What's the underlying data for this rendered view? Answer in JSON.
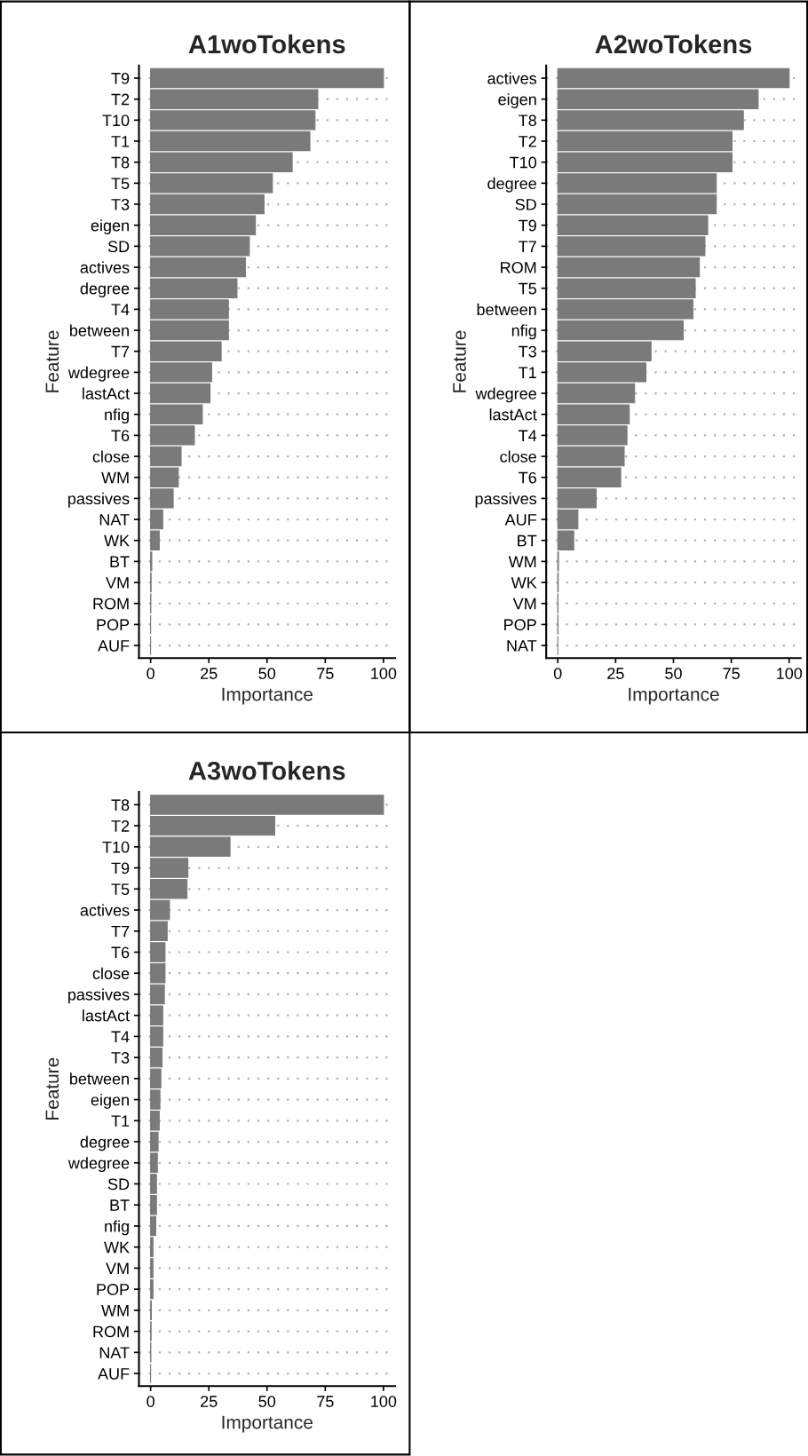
{
  "chart_data": [
    {
      "type": "bar",
      "orientation": "horizontal",
      "title": "A1woTokens",
      "xlabel": "Importance",
      "ylabel": "Feature",
      "categories": [
        "T9",
        "T2",
        "T10",
        "T1",
        "T8",
        "T5",
        "T3",
        "eigen",
        "SD",
        "actives",
        "degree",
        "T4",
        "between",
        "T7",
        "wdegree",
        "lastAct",
        "nfig",
        "T6",
        "close",
        "WM",
        "passives",
        "NAT",
        "WK",
        "BT",
        "VM",
        "ROM",
        "POP",
        "AUF"
      ],
      "values": [
        100,
        71.8,
        70.6,
        68.4,
        60.8,
        52.3,
        48.7,
        45.0,
        42.4,
        40.7,
        37.1,
        33.4,
        33.4,
        30.3,
        26.2,
        25.5,
        22.2,
        18.8,
        13.1,
        11.9,
        9.7,
        5.2,
        3.7,
        0.5,
        0.2,
        0.1,
        0,
        0
      ],
      "color": "#7a7a7a",
      "xlim": [
        -5,
        105
      ],
      "xticks": [
        0,
        25,
        50,
        75,
        100
      ],
      "grid": "y",
      "legend": false
    },
    {
      "type": "bar",
      "orientation": "horizontal",
      "title": "A2woTokens",
      "xlabel": "Importance",
      "ylabel": "Feature",
      "categories": [
        "actives",
        "eigen",
        "T8",
        "T2",
        "T10",
        "degree",
        "SD",
        "T9",
        "T7",
        "ROM",
        "T5",
        "between",
        "nfig",
        "T3",
        "T1",
        "wdegree",
        "lastAct",
        "T4",
        "close",
        "T6",
        "passives",
        "AUF",
        "BT",
        "WM",
        "WK",
        "VM",
        "POP",
        "NAT"
      ],
      "values": [
        100,
        86.6,
        80.2,
        75.3,
        75.3,
        68.5,
        68.5,
        64.8,
        63.6,
        61.2,
        59.4,
        58.4,
        54.2,
        40.3,
        38.1,
        33.2,
        30.9,
        29.9,
        28.7,
        27.2,
        16.6,
        8.7,
        6.9,
        0.3,
        0.2,
        0.1,
        0.1,
        0
      ],
      "color": "#7a7a7a",
      "xlim": [
        -5,
        105
      ],
      "xticks": [
        0,
        25,
        50,
        75,
        100
      ],
      "grid": "y",
      "legend": false
    },
    {
      "type": "bar",
      "orientation": "horizontal",
      "title": "A3woTokens",
      "xlabel": "Importance",
      "ylabel": "Feature",
      "categories": [
        "T8",
        "T2",
        "T10",
        "T9",
        "T5",
        "actives",
        "T7",
        "T6",
        "close",
        "passives",
        "lastAct",
        "T4",
        "T3",
        "between",
        "eigen",
        "T1",
        "degree",
        "wdegree",
        "SD",
        "BT",
        "nfig",
        "WK",
        "VM",
        "POP",
        "WM",
        "ROM",
        "NAT",
        "AUF"
      ],
      "values": [
        100,
        53.3,
        34.1,
        16.0,
        15.6,
        8.1,
        7.1,
        6.2,
        6.2,
        5.9,
        5.2,
        5.2,
        4.9,
        4.4,
        4.0,
        3.7,
        3.2,
        2.9,
        2.5,
        2.5,
        2.2,
        1.0,
        1.0,
        1.0,
        0.3,
        0.2,
        0.1,
        0
      ],
      "color": "#7a7a7a",
      "xlim": [
        -5,
        105
      ],
      "xticks": [
        0,
        25,
        50,
        75,
        100
      ],
      "grid": "y",
      "legend": false
    }
  ]
}
